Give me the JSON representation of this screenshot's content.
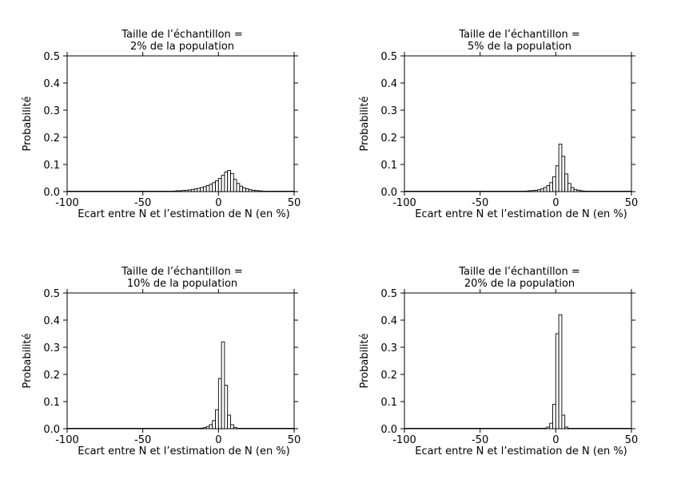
{
  "chart_data": [
    {
      "type": "bar",
      "title_line1": "Taille de l’échantillon =",
      "title_line2": "2% de la population",
      "xlabel": "Ecart entre N et l’estimation de N (en %)",
      "ylabel": "Probabilité",
      "xlim": [
        -100,
        50
      ],
      "ylim": [
        0,
        0.5
      ],
      "xticks": [
        "-100",
        "-50",
        "0",
        "50"
      ],
      "yticks": [
        "0.0",
        "0.1",
        "0.2",
        "0.3",
        "0.4",
        "0.5"
      ],
      "x": [
        -29,
        -27,
        -25,
        -23,
        -21,
        -19,
        -17,
        -15,
        -13,
        -11,
        -9,
        -7,
        -5,
        -3,
        -1,
        1,
        3,
        5,
        7,
        9,
        11,
        13,
        15,
        17,
        19,
        21,
        23,
        25,
        27,
        29
      ],
      "values": [
        0.002,
        0.003,
        0.003,
        0.004,
        0.005,
        0.006,
        0.008,
        0.01,
        0.012,
        0.015,
        0.018,
        0.022,
        0.027,
        0.033,
        0.04,
        0.049,
        0.06,
        0.072,
        0.078,
        0.066,
        0.045,
        0.03,
        0.02,
        0.014,
        0.01,
        0.007,
        0.005,
        0.004,
        0.003,
        0.002
      ]
    },
    {
      "type": "bar",
      "title_line1": "Taille de l’échantillon =",
      "title_line2": "5% de la population",
      "xlabel": "Ecart entre N et l’estimation de N (en %)",
      "ylabel": "Probabilité",
      "xlim": [
        -100,
        50
      ],
      "ylim": [
        0,
        0.5
      ],
      "xticks": [
        "-100",
        "-50",
        "0",
        "50"
      ],
      "yticks": [
        "0.0",
        "0.1",
        "0.2",
        "0.3",
        "0.4",
        "0.5"
      ],
      "x": [
        -19,
        -17,
        -15,
        -13,
        -11,
        -9,
        -7,
        -5,
        -3,
        -1,
        1,
        3,
        5,
        7,
        9,
        11,
        13,
        15,
        17,
        19
      ],
      "values": [
        0.002,
        0.003,
        0.004,
        0.005,
        0.007,
        0.01,
        0.015,
        0.022,
        0.033,
        0.055,
        0.095,
        0.175,
        0.13,
        0.065,
        0.03,
        0.015,
        0.008,
        0.005,
        0.003,
        0.002
      ]
    },
    {
      "type": "bar",
      "title_line1": "Taille de l’échantillon =",
      "title_line2": "10% de la population",
      "xlabel": "Ecart entre N et l’estimation de N (en %)",
      "ylabel": "Probabilité",
      "xlim": [
        -100,
        50
      ],
      "ylim": [
        0,
        0.5
      ],
      "xticks": [
        "-100",
        "-50",
        "0",
        "50"
      ],
      "yticks": [
        "0.0",
        "0.1",
        "0.2",
        "0.3",
        "0.4",
        "0.5"
      ],
      "x": [
        -11,
        -9,
        -7,
        -5,
        -3,
        -1,
        1,
        3,
        5,
        7,
        9,
        11
      ],
      "values": [
        0.002,
        0.004,
        0.008,
        0.015,
        0.03,
        0.07,
        0.185,
        0.32,
        0.16,
        0.05,
        0.015,
        0.005
      ]
    },
    {
      "type": "bar",
      "title_line1": "Taille de l’échantillon =",
      "title_line2": "20% de la population",
      "xlabel": "Ecart entre N et l’estimation de N (en %)",
      "ylabel": "Probabilité",
      "xlim": [
        -100,
        50
      ],
      "ylim": [
        0,
        0.5
      ],
      "xticks": [
        "-100",
        "-50",
        "0",
        "50"
      ],
      "yticks": [
        "0.0",
        "0.1",
        "0.2",
        "0.3",
        "0.4",
        "0.5"
      ],
      "x": [
        -7,
        -5,
        -3,
        -1,
        1,
        3,
        5,
        7
      ],
      "values": [
        0.002,
        0.006,
        0.02,
        0.09,
        0.35,
        0.42,
        0.05,
        0.006
      ]
    }
  ]
}
